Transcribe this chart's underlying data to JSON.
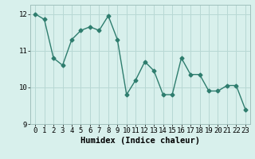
{
  "x": [
    0,
    1,
    2,
    3,
    4,
    5,
    6,
    7,
    8,
    9,
    10,
    11,
    12,
    13,
    14,
    15,
    16,
    17,
    18,
    19,
    20,
    21,
    22,
    23
  ],
  "y": [
    12.0,
    11.85,
    10.8,
    10.6,
    11.3,
    11.55,
    11.65,
    11.55,
    11.95,
    11.3,
    9.8,
    10.2,
    10.7,
    10.45,
    9.8,
    9.8,
    10.8,
    10.35,
    10.35,
    9.9,
    9.9,
    10.05,
    10.05,
    9.4
  ],
  "line_color": "#2e7d6e",
  "marker": "D",
  "markersize": 2.5,
  "linewidth": 1.0,
  "bg_color": "#d8f0ec",
  "grid_color": "#b8d8d4",
  "xlabel": "Humidex (Indice chaleur)",
  "xlim": [
    -0.5,
    23.5
  ],
  "ylim": [
    9.0,
    12.25
  ],
  "yticks": [
    9,
    10,
    11,
    12
  ],
  "xticks": [
    0,
    1,
    2,
    3,
    4,
    5,
    6,
    7,
    8,
    9,
    10,
    11,
    12,
    13,
    14,
    15,
    16,
    17,
    18,
    19,
    20,
    21,
    22,
    23
  ],
  "tick_fontsize": 6.5,
  "xlabel_fontsize": 7.5,
  "spine_color": "#a0c0bc"
}
